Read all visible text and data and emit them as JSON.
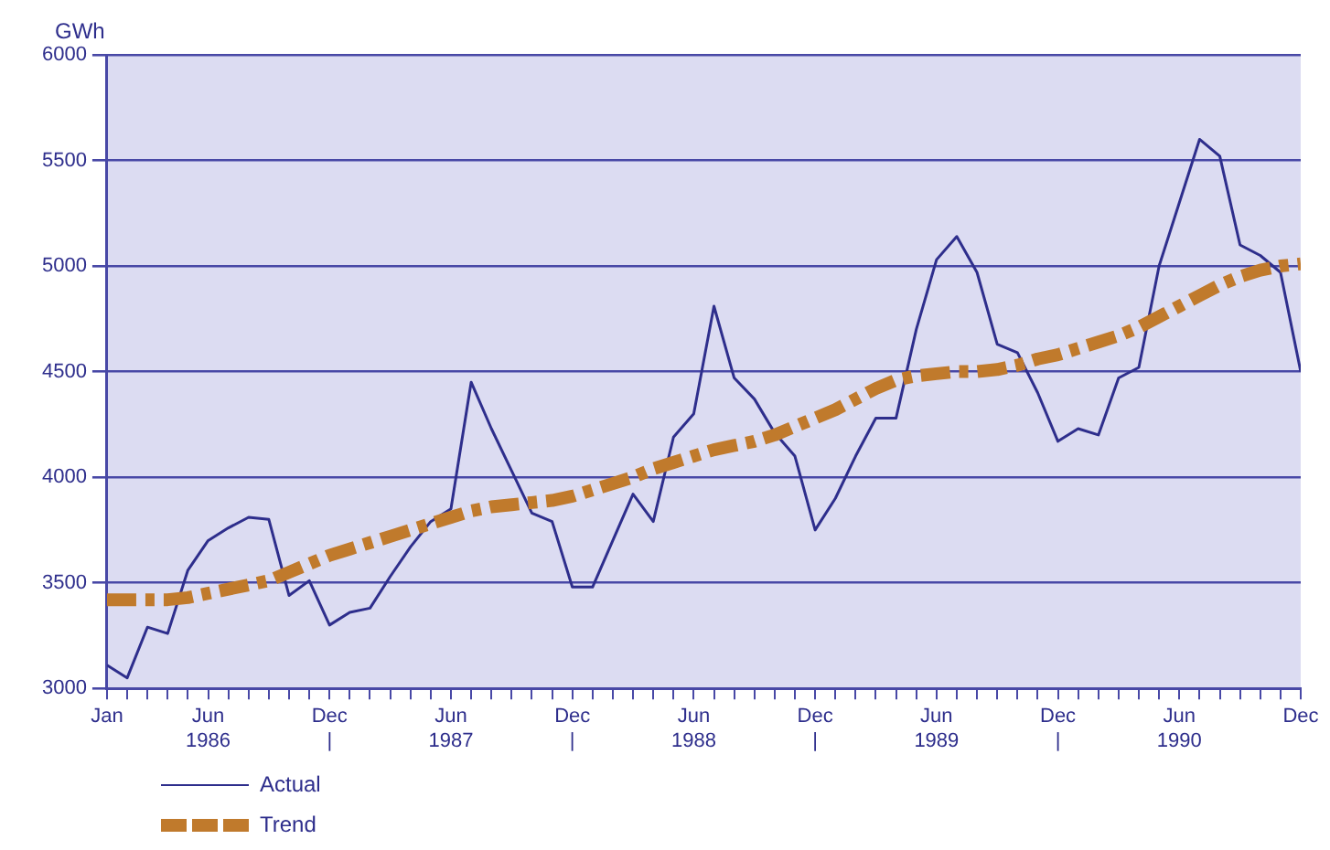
{
  "chart_data": {
    "type": "line",
    "ylabel": "GWh",
    "x": [
      "1986-01",
      "1986-02",
      "1986-03",
      "1986-04",
      "1986-05",
      "1986-06",
      "1986-07",
      "1986-08",
      "1986-09",
      "1986-10",
      "1986-11",
      "1986-12",
      "1987-01",
      "1987-02",
      "1987-03",
      "1987-04",
      "1987-05",
      "1987-06",
      "1987-07",
      "1987-08",
      "1987-09",
      "1987-10",
      "1987-11",
      "1987-12",
      "1988-01",
      "1988-02",
      "1988-03",
      "1988-04",
      "1988-05",
      "1988-06",
      "1988-07",
      "1988-08",
      "1988-09",
      "1988-10",
      "1988-11",
      "1988-12",
      "1989-01",
      "1989-02",
      "1989-03",
      "1989-04",
      "1989-05",
      "1989-06",
      "1989-07",
      "1989-08",
      "1989-09",
      "1989-10",
      "1989-11",
      "1989-12",
      "1990-01",
      "1990-02",
      "1990-03",
      "1990-04",
      "1990-05",
      "1990-06",
      "1990-07",
      "1990-08",
      "1990-09",
      "1990-10",
      "1990-11",
      "1990-12"
    ],
    "series": [
      {
        "name": "Actual",
        "color": "#2e2e8c",
        "line_style": "solid",
        "values": [
          3110,
          3050,
          3290,
          3260,
          3560,
          3700,
          3760,
          3810,
          3800,
          3440,
          3510,
          3300,
          3360,
          3380,
          3530,
          3670,
          3790,
          3850,
          4450,
          4230,
          4030,
          3830,
          3790,
          3480,
          3480,
          3700,
          3920,
          3790,
          4190,
          4300,
          4810,
          4470,
          4370,
          4210,
          4100,
          3750,
          3900,
          4100,
          4280,
          4280,
          4700,
          5030,
          5140,
          4970,
          4630,
          4590,
          4400,
          4170,
          4230,
          4200,
          4470,
          4520,
          5000,
          5300,
          5600,
          5520,
          5100,
          5050,
          4970,
          4500
        ]
      },
      {
        "name": "Trend",
        "color": "#c07a2c",
        "line_style": "dashed",
        "values": [
          3420,
          3420,
          3420,
          3420,
          3430,
          3450,
          3470,
          3490,
          3510,
          3550,
          3590,
          3630,
          3660,
          3690,
          3720,
          3750,
          3780,
          3810,
          3840,
          3860,
          3870,
          3880,
          3890,
          3910,
          3940,
          3970,
          4000,
          4040,
          4070,
          4100,
          4130,
          4150,
          4170,
          4200,
          4240,
          4280,
          4320,
          4370,
          4420,
          4460,
          4480,
          4490,
          4500,
          4500,
          4510,
          4530,
          4560,
          4580,
          4610,
          4640,
          4670,
          4710,
          4760,
          4810,
          4860,
          4910,
          4950,
          4980,
          5000,
          5010
        ]
      }
    ],
    "xlim": [
      "1986-01",
      "1990-12"
    ],
    "xticks": [
      {
        "value": "1986-01",
        "label": "Jan"
      },
      {
        "value": "1986-02",
        "label": null
      },
      {
        "value": "1986-03",
        "label": null
      },
      {
        "value": "1986-04",
        "label": null
      },
      {
        "value": "1986-05",
        "label": null
      },
      {
        "value": "1986-06",
        "label": "Jun\n1986"
      },
      {
        "value": "1986-07",
        "label": null
      },
      {
        "value": "1986-08",
        "label": null
      },
      {
        "value": "1986-09",
        "label": null
      },
      {
        "value": "1986-10",
        "label": null
      },
      {
        "value": "1986-11",
        "label": null
      },
      {
        "value": "1986-12",
        "label": "Dec\n|"
      },
      {
        "value": "1987-01",
        "label": null
      },
      {
        "value": "1987-02",
        "label": null
      },
      {
        "value": "1987-03",
        "label": null
      },
      {
        "value": "1987-04",
        "label": null
      },
      {
        "value": "1987-05",
        "label": null
      },
      {
        "value": "1987-06",
        "label": "Jun\n1987"
      },
      {
        "value": "1987-07",
        "label": null
      },
      {
        "value": "1987-08",
        "label": null
      },
      {
        "value": "1987-09",
        "label": null
      },
      {
        "value": "1987-10",
        "label": null
      },
      {
        "value": "1987-11",
        "label": null
      },
      {
        "value": "1987-12",
        "label": "Dec\n|"
      },
      {
        "value": "1988-01",
        "label": null
      },
      {
        "value": "1988-02",
        "label": null
      },
      {
        "value": "1988-03",
        "label": null
      },
      {
        "value": "1988-04",
        "label": null
      },
      {
        "value": "1988-05",
        "label": null
      },
      {
        "value": "1988-06",
        "label": "Jun\n1988"
      },
      {
        "value": "1988-07",
        "label": null
      },
      {
        "value": "1988-08",
        "label": null
      },
      {
        "value": "1988-09",
        "label": null
      },
      {
        "value": "1988-10",
        "label": null
      },
      {
        "value": "1988-11",
        "label": null
      },
      {
        "value": "1988-12",
        "label": "Dec\n|"
      },
      {
        "value": "1989-01",
        "label": null
      },
      {
        "value": "1989-02",
        "label": null
      },
      {
        "value": "1989-03",
        "label": null
      },
      {
        "value": "1989-04",
        "label": null
      },
      {
        "value": "1989-05",
        "label": null
      },
      {
        "value": "1989-06",
        "label": "Jun\n1989"
      },
      {
        "value": "1989-07",
        "label": null
      },
      {
        "value": "1989-08",
        "label": null
      },
      {
        "value": "1989-09",
        "label": null
      },
      {
        "value": "1989-10",
        "label": null
      },
      {
        "value": "1989-11",
        "label": null
      },
      {
        "value": "1989-12",
        "label": "Dec\n|"
      },
      {
        "value": "1990-01",
        "label": null
      },
      {
        "value": "1990-02",
        "label": null
      },
      {
        "value": "1990-03",
        "label": null
      },
      {
        "value": "1990-04",
        "label": null
      },
      {
        "value": "1990-05",
        "label": null
      },
      {
        "value": "1990-06",
        "label": "Jun\n1990"
      },
      {
        "value": "1990-07",
        "label": null
      },
      {
        "value": "1990-08",
        "label": null
      },
      {
        "value": "1990-09",
        "label": null
      },
      {
        "value": "1990-10",
        "label": null
      },
      {
        "value": "1990-11",
        "label": null
      },
      {
        "value": "1990-12",
        "label": "Dec"
      }
    ],
    "ylim": [
      3000,
      6000
    ],
    "yticks": [
      3000,
      3500,
      4000,
      4500,
      5000,
      5500,
      6000
    ],
    "grid": "y",
    "legend": "bottom left",
    "marker": "none"
  }
}
